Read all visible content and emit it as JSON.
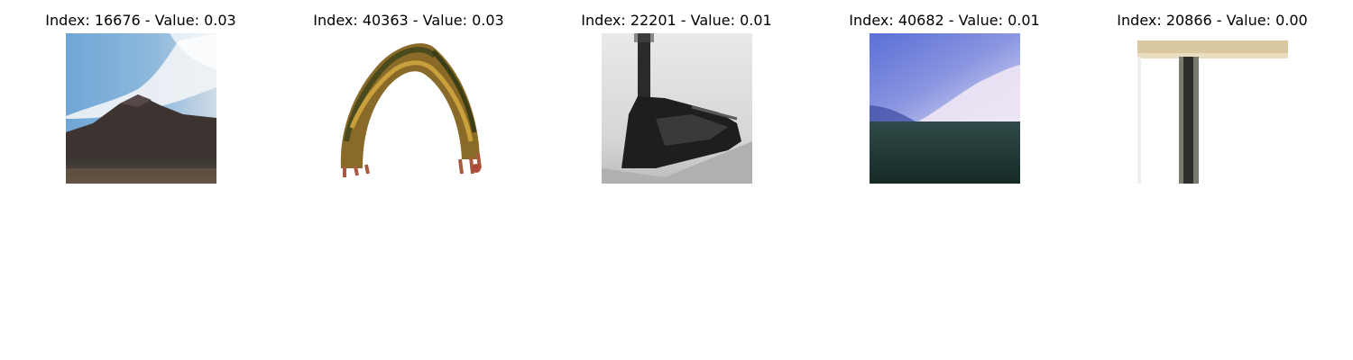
{
  "panels": [
    {
      "title": "Index: 16676 - Value: 0.03",
      "image_subject": "volcano-mountain"
    },
    {
      "title": "Index: 40363 - Value: 0.03",
      "image_subject": "caterpillar"
    },
    {
      "title": "Index: 22201 - Value: 0.01",
      "image_subject": "steam-train"
    },
    {
      "title": "Index: 40682 - Value: 0.01",
      "image_subject": "sea-under-sky"
    },
    {
      "title": "Index: 20866 - Value: 0.00",
      "image_subject": "table"
    }
  ]
}
